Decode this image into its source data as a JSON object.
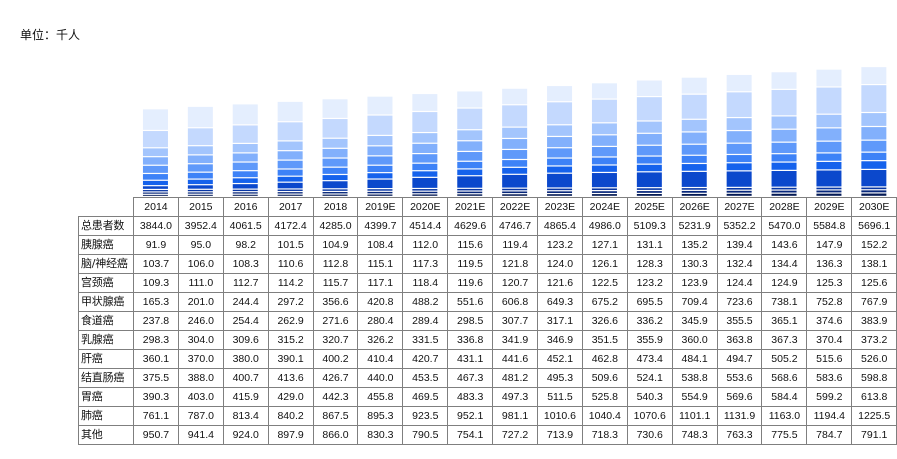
{
  "unit_label": "单位：千人",
  "chart_data": {
    "type": "bar",
    "stacked": true,
    "categories": [
      "2014",
      "2015",
      "2016",
      "2017",
      "2018",
      "2019E",
      "2020E",
      "2021E",
      "2022E",
      "2023E",
      "2024E",
      "2025E",
      "2026E",
      "2027E",
      "2028E",
      "2029E",
      "2030E"
    ],
    "total_label": "总患者数",
    "totals": [
      "3844.0",
      "3952.4",
      "4061.5",
      "4172.4",
      "4285.0",
      "4399.7",
      "4514.4",
      "4629.6",
      "4746.7",
      "4865.4",
      "4986.0",
      "5109.3",
      "5231.9",
      "5352.2",
      "5470.0",
      "5584.8",
      "5696.1"
    ],
    "series": [
      {
        "name": "胰腺癌",
        "values": [
          "91.9",
          "95.0",
          "98.2",
          "101.5",
          "104.9",
          "108.4",
          "112.0",
          "115.6",
          "119.4",
          "123.2",
          "127.1",
          "131.1",
          "135.2",
          "139.4",
          "143.6",
          "147.9",
          "152.2"
        ]
      },
      {
        "name": "脑/神经癌",
        "values": [
          "103.7",
          "106.0",
          "108.3",
          "110.6",
          "112.8",
          "115.1",
          "117.3",
          "119.5",
          "121.8",
          "124.0",
          "126.1",
          "128.3",
          "130.3",
          "132.4",
          "134.4",
          "136.3",
          "138.1"
        ]
      },
      {
        "name": "宫颈癌",
        "values": [
          "109.3",
          "111.0",
          "112.7",
          "114.2",
          "115.7",
          "117.1",
          "118.4",
          "119.6",
          "120.7",
          "121.6",
          "122.5",
          "123.2",
          "123.9",
          "124.4",
          "124.9",
          "125.3",
          "125.6"
        ]
      },
      {
        "name": "甲状腺癌",
        "values": [
          "165.3",
          "201.0",
          "244.4",
          "297.2",
          "356.6",
          "420.8",
          "488.2",
          "551.6",
          "606.8",
          "649.3",
          "675.2",
          "695.5",
          "709.4",
          "723.6",
          "738.1",
          "752.8",
          "767.9"
        ]
      },
      {
        "name": "食道癌",
        "values": [
          "237.8",
          "246.0",
          "254.4",
          "262.9",
          "271.6",
          "280.4",
          "289.4",
          "298.5",
          "307.7",
          "317.1",
          "326.6",
          "336.2",
          "345.9",
          "355.5",
          "365.1",
          "374.6",
          "383.9"
        ]
      },
      {
        "name": "乳腺癌",
        "values": [
          "298.3",
          "304.0",
          "309.6",
          "315.2",
          "320.7",
          "326.2",
          "331.5",
          "336.8",
          "341.9",
          "346.9",
          "351.5",
          "355.9",
          "360.0",
          "363.8",
          "367.3",
          "370.4",
          "373.2"
        ]
      },
      {
        "name": "肝癌",
        "values": [
          "360.1",
          "370.0",
          "380.0",
          "390.1",
          "400.2",
          "410.4",
          "420.7",
          "431.1",
          "441.6",
          "452.1",
          "462.8",
          "473.4",
          "484.1",
          "494.7",
          "505.2",
          "515.6",
          "526.0"
        ]
      },
      {
        "name": "结直肠癌",
        "values": [
          "375.5",
          "388.0",
          "400.7",
          "413.6",
          "426.7",
          "440.0",
          "453.5",
          "467.3",
          "481.2",
          "495.3",
          "509.6",
          "524.1",
          "538.8",
          "553.6",
          "568.6",
          "583.6",
          "598.8"
        ]
      },
      {
        "name": "胃癌",
        "values": [
          "390.3",
          "403.0",
          "415.9",
          "429.0",
          "442.3",
          "455.8",
          "469.5",
          "483.3",
          "497.3",
          "511.5",
          "525.8",
          "540.3",
          "554.9",
          "569.6",
          "584.4",
          "599.2",
          "613.8"
        ]
      },
      {
        "name": "肺癌",
        "values": [
          "761.1",
          "787.0",
          "813.4",
          "840.2",
          "867.5",
          "895.3",
          "923.5",
          "952.1",
          "981.1",
          "1010.6",
          "1040.4",
          "1070.6",
          "1101.1",
          "1131.9",
          "1163.0",
          "1194.4",
          "1225.5"
        ]
      },
      {
        "name": "其他",
        "values": [
          "950.7",
          "941.4",
          "924.0",
          "897.9",
          "866.0",
          "830.3",
          "790.5",
          "754.1",
          "727.2",
          "713.9",
          "718.3",
          "730.6",
          "748.3",
          "763.3",
          "775.5",
          "784.7",
          "791.1"
        ]
      }
    ],
    "segment_colors": [
      "#041a55",
      "#06267a",
      "#0836a4",
      "#0b48cc",
      "#1562ec",
      "#3d82f7",
      "#5f99fa",
      "#82b0fc",
      "#a3c5fd",
      "#c4d9fe",
      "#e4eefe"
    ],
    "legend": "table-below"
  }
}
